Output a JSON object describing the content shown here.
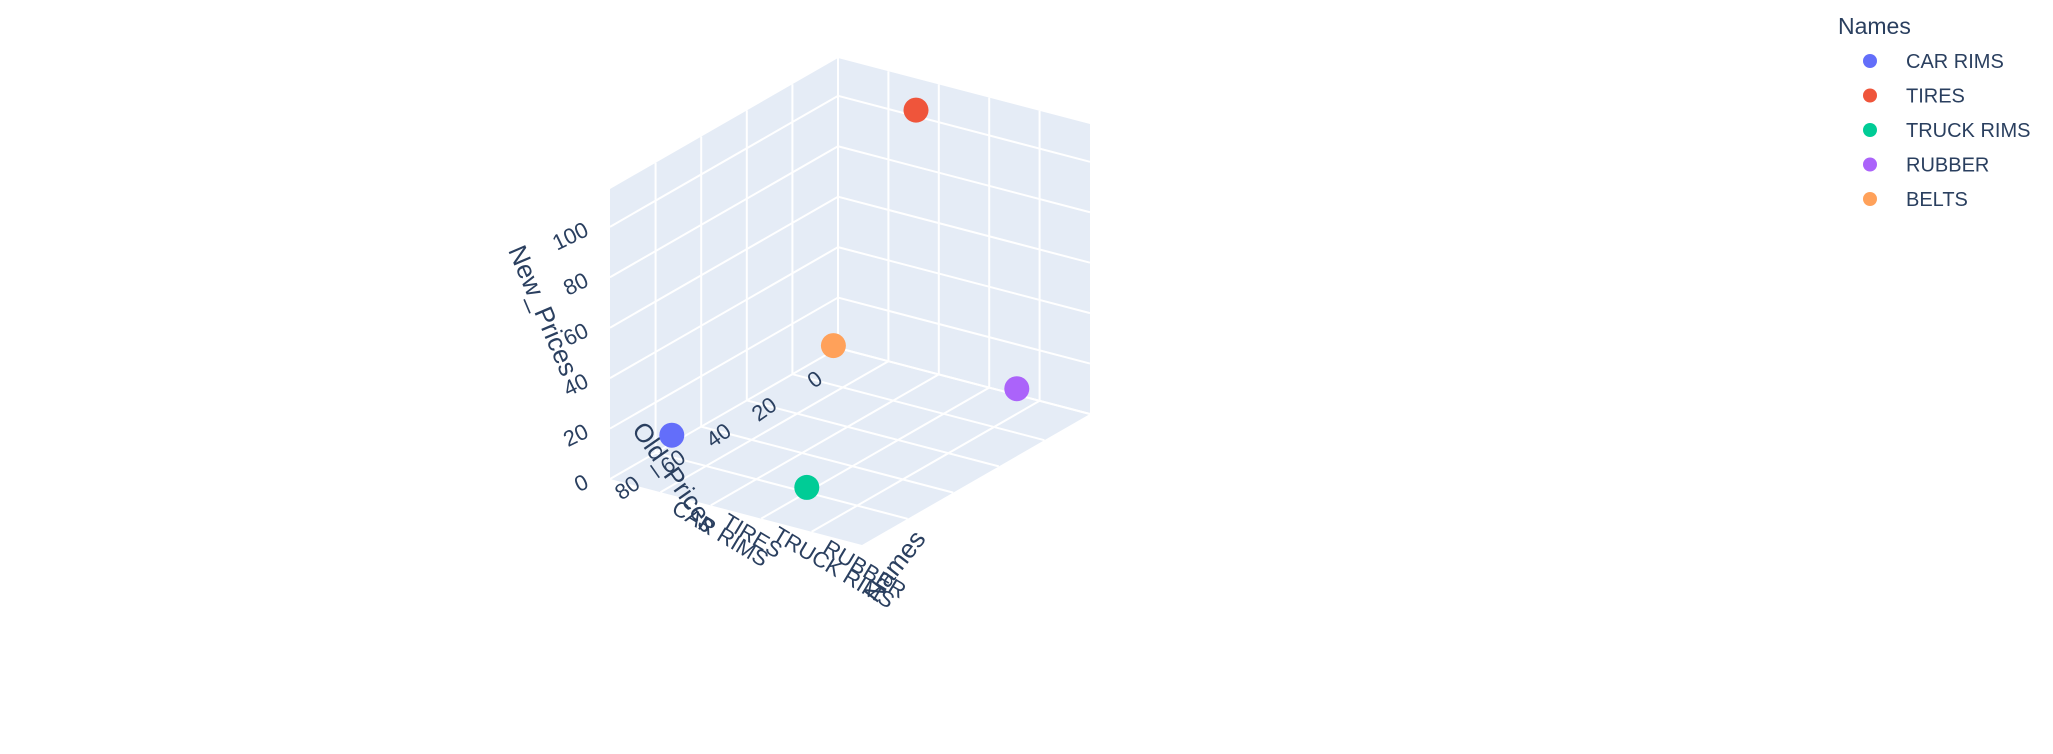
{
  "chart_data": {
    "type": "scatter3d",
    "title": "",
    "legend": {
      "title": "Names",
      "placement": "top-right",
      "entries": [
        {
          "name": "CAR RIMS",
          "color": "#636efa"
        },
        {
          "name": "TIRES",
          "color": "#ef553b"
        },
        {
          "name": "TRUCK RIMS",
          "color": "#00cc96"
        },
        {
          "name": "RUBBER",
          "color": "#ab63fa"
        },
        {
          "name": "BELTS",
          "color": "#ffa15a"
        }
      ]
    },
    "axes": {
      "x": {
        "title": "Old_Prices",
        "range": [
          0,
          100
        ],
        "ticks": [
          "0",
          "20",
          "40",
          "60",
          "80"
        ]
      },
      "y": {
        "title": "Names",
        "categories": [
          "CAR RIMS",
          "TIRES",
          "TRUCK RIMS",
          "RUBBER"
        ]
      },
      "z": {
        "title": "New_Prices",
        "range": [
          0,
          115
        ],
        "ticks": [
          "0",
          "20",
          "40",
          "60",
          "80",
          "100"
        ]
      }
    },
    "series": [
      {
        "name": "CAR RIMS",
        "old_price": 95,
        "new_price": 20
      },
      {
        "name": "TIRES",
        "old_price": 10,
        "new_price": 110
      },
      {
        "name": "TRUCK RIMS",
        "old_price": 80,
        "new_price": 2
      },
      {
        "name": "RUBBER",
        "old_price": 10,
        "new_price": 10
      },
      {
        "name": "BELTS",
        "old_price": 2,
        "new_price": 2
      }
    ],
    "grid": true,
    "background": "#e5ecf6"
  }
}
